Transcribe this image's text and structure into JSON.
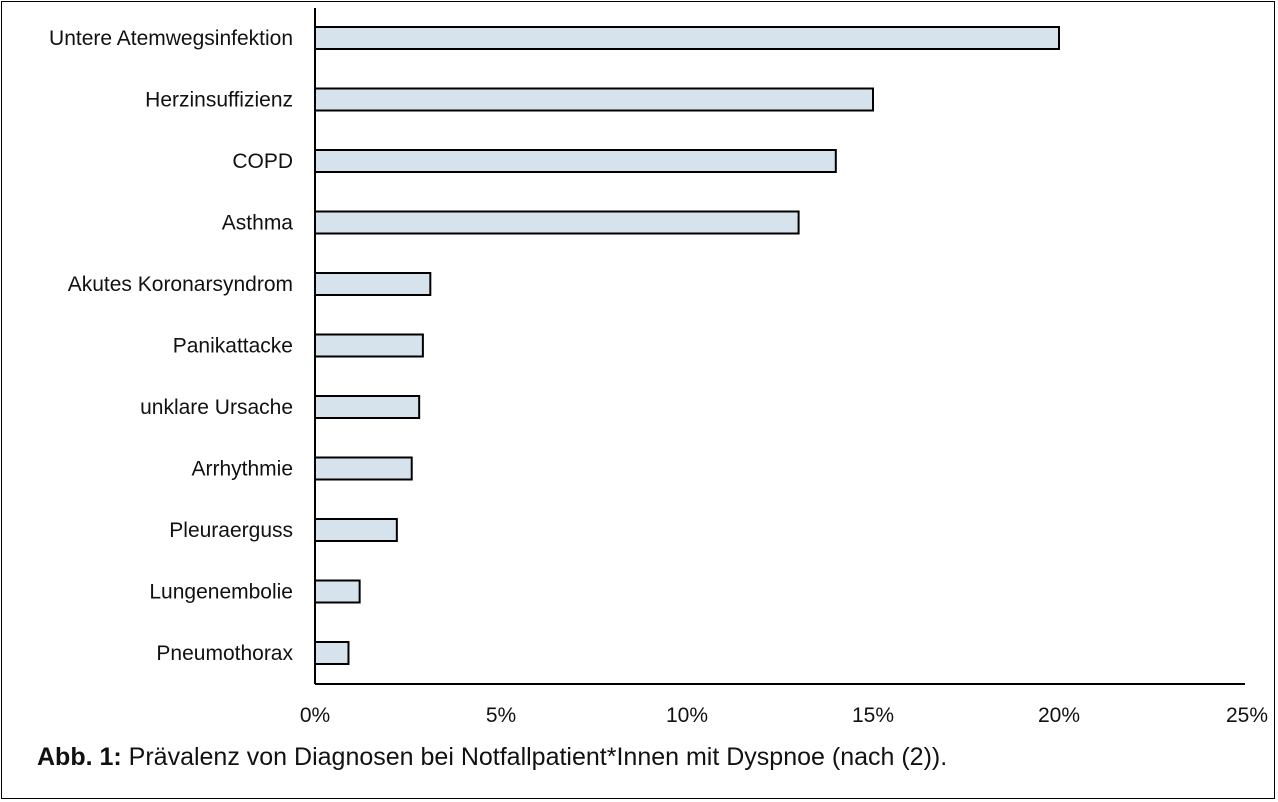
{
  "chart_data": {
    "type": "bar",
    "orientation": "horizontal",
    "categories": [
      "Untere Atemwegsinfektion",
      "Herzinsuffizienz",
      "COPD",
      "Asthma",
      "Akutes Koronarsyndrom",
      "Panikattacke",
      "unklare Ursache",
      "Arrhythmie",
      "Pleuraerguss",
      "Lungenembolie",
      "Pneumothorax"
    ],
    "values": [
      20.0,
      15.0,
      14.0,
      13.0,
      3.1,
      2.9,
      2.8,
      2.6,
      2.2,
      1.2,
      0.9
    ],
    "xlim": [
      0,
      25
    ],
    "xticks": [
      "0%",
      "5%",
      "10%",
      "15%",
      "20%",
      "25%"
    ],
    "xtick_values": [
      0,
      5,
      10,
      15,
      20,
      25
    ],
    "bar_color": "#d6e3ec",
    "bar_edge_color": "#000000",
    "grid": false
  },
  "caption": {
    "label": "Abb. 1:",
    "text": " Prävalenz von Diagnosen bei Notfallpatient*Innen mit Dyspnoe (nach (2))."
  }
}
